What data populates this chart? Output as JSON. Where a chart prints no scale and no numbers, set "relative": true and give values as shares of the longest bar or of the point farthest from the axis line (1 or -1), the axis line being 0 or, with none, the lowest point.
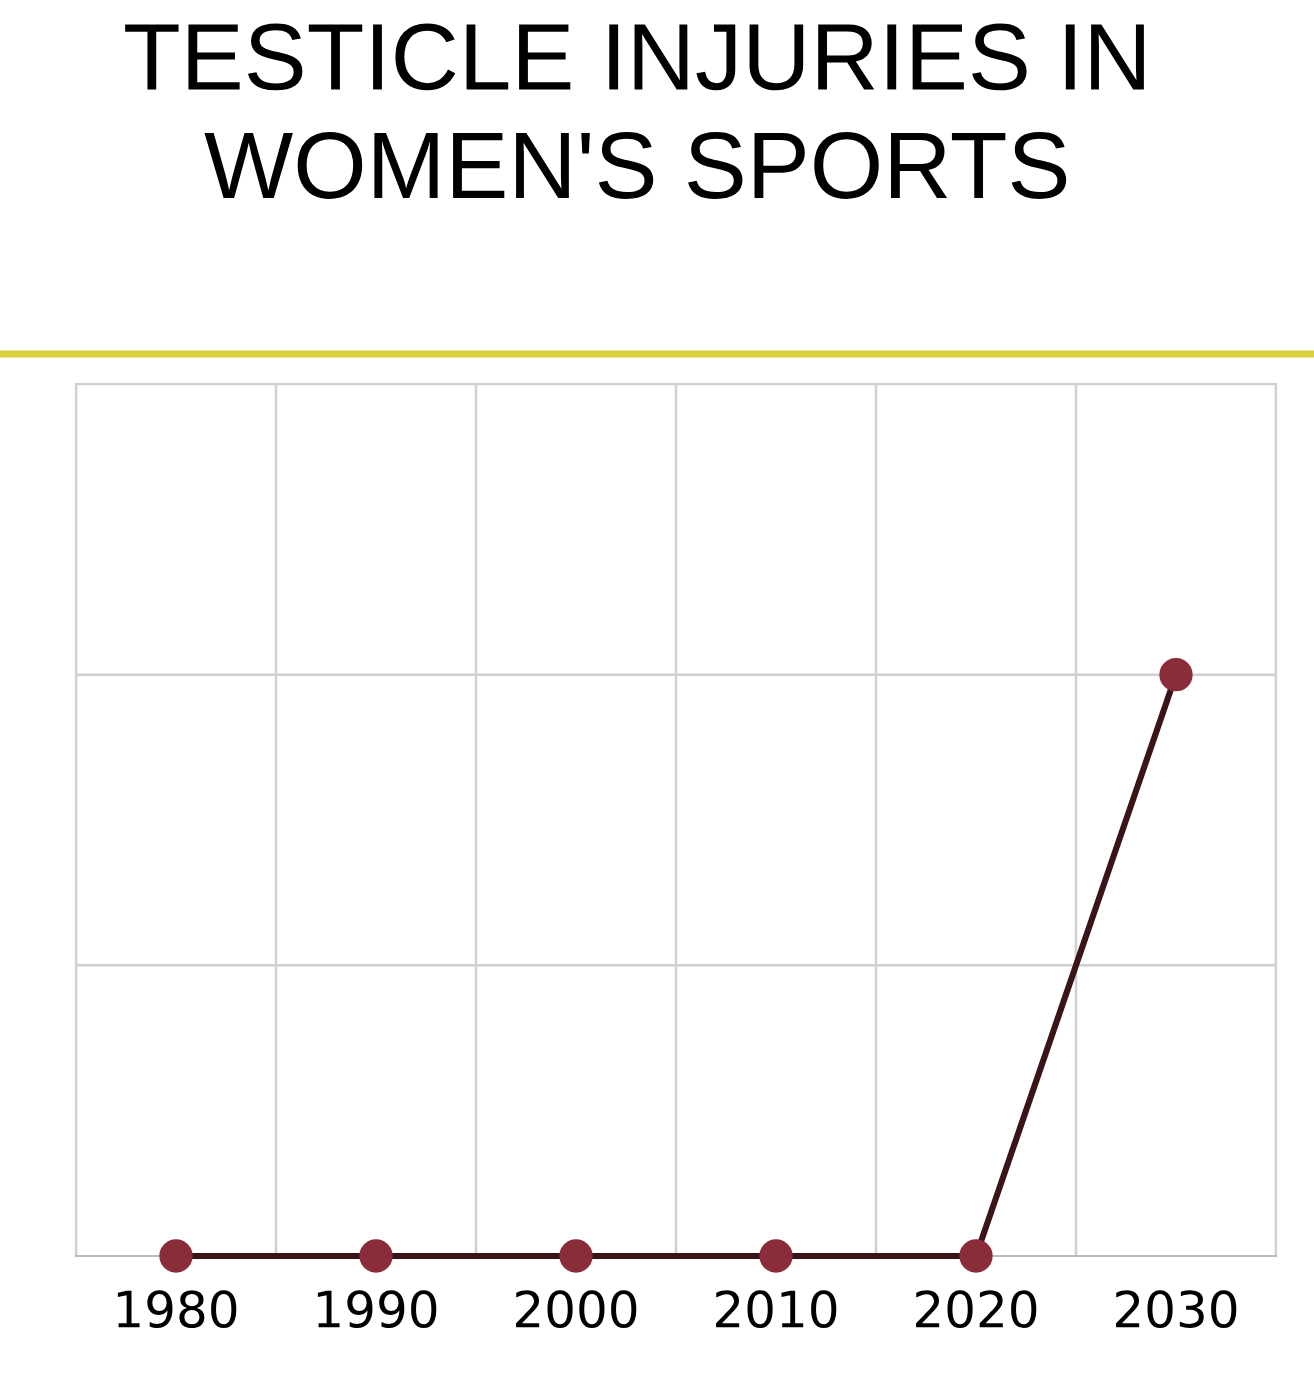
{
  "chart_data": {
    "type": "line",
    "title": "TESTICLE INJURIES IN\nWOMEN'S SPORTS",
    "categories": [
      "1980",
      "1990",
      "2000",
      "2010",
      "2020",
      "2030"
    ],
    "relative": true,
    "grid": true,
    "marker": "circle",
    "line_style": "solid",
    "series": [
      {
        "color": "#8b2c3a",
        "values": [
          0,
          0,
          0,
          0,
          0,
          1
        ]
      }
    ]
  }
}
